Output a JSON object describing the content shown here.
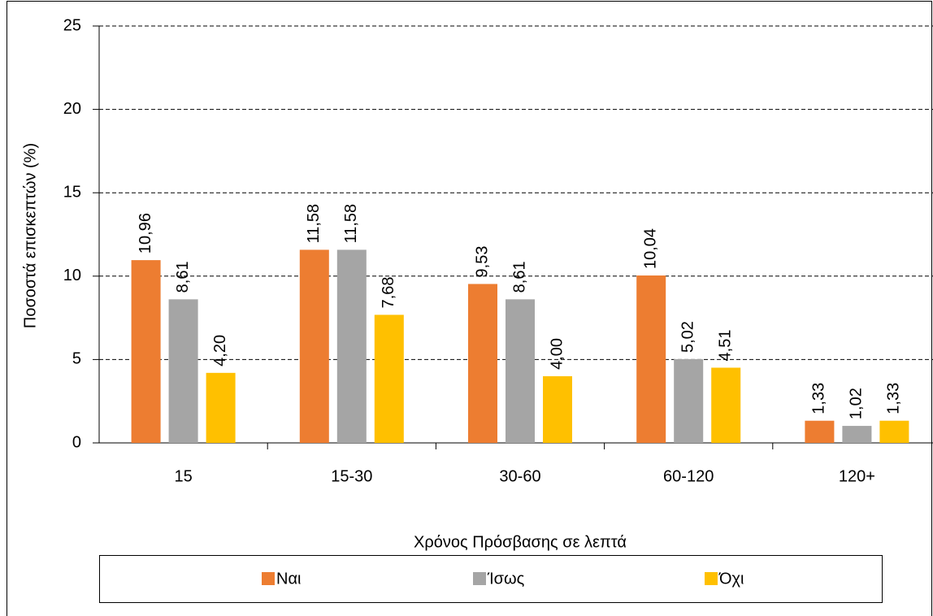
{
  "chart_data": {
    "type": "bar",
    "y_label": "Ποσοστά επισκεπτών (%)",
    "x_label": "Χρόνος Πρόσβασης σε λεπτά",
    "categories": [
      "15",
      "15-30",
      "30-60",
      "60-120",
      "120+"
    ],
    "series": [
      {
        "name": "Ναι",
        "color": "#ED7D31",
        "values": [
          10.96,
          11.58,
          9.53,
          10.04,
          1.33
        ],
        "value_labels": [
          "10,96",
          "11,58",
          "9,53",
          "10,04",
          "1,33"
        ]
      },
      {
        "name": "Ίσως",
        "color": "#A5A5A5",
        "values": [
          8.61,
          11.58,
          8.61,
          5.02,
          1.02
        ],
        "value_labels": [
          "8,61",
          "11,58",
          "8,61",
          "5,02",
          "1,02"
        ]
      },
      {
        "name": "Όχι",
        "color": "#FFC000",
        "values": [
          4.2,
          7.68,
          4.0,
          4.51,
          1.33
        ],
        "value_labels": [
          "4,20",
          "7,68",
          "4,00",
          "4,51",
          "1,33"
        ]
      }
    ],
    "ylim": [
      0,
      25
    ],
    "yticks": [
      0,
      5,
      10,
      15,
      20,
      25
    ],
    "grid": true,
    "legend": "bottom"
  }
}
